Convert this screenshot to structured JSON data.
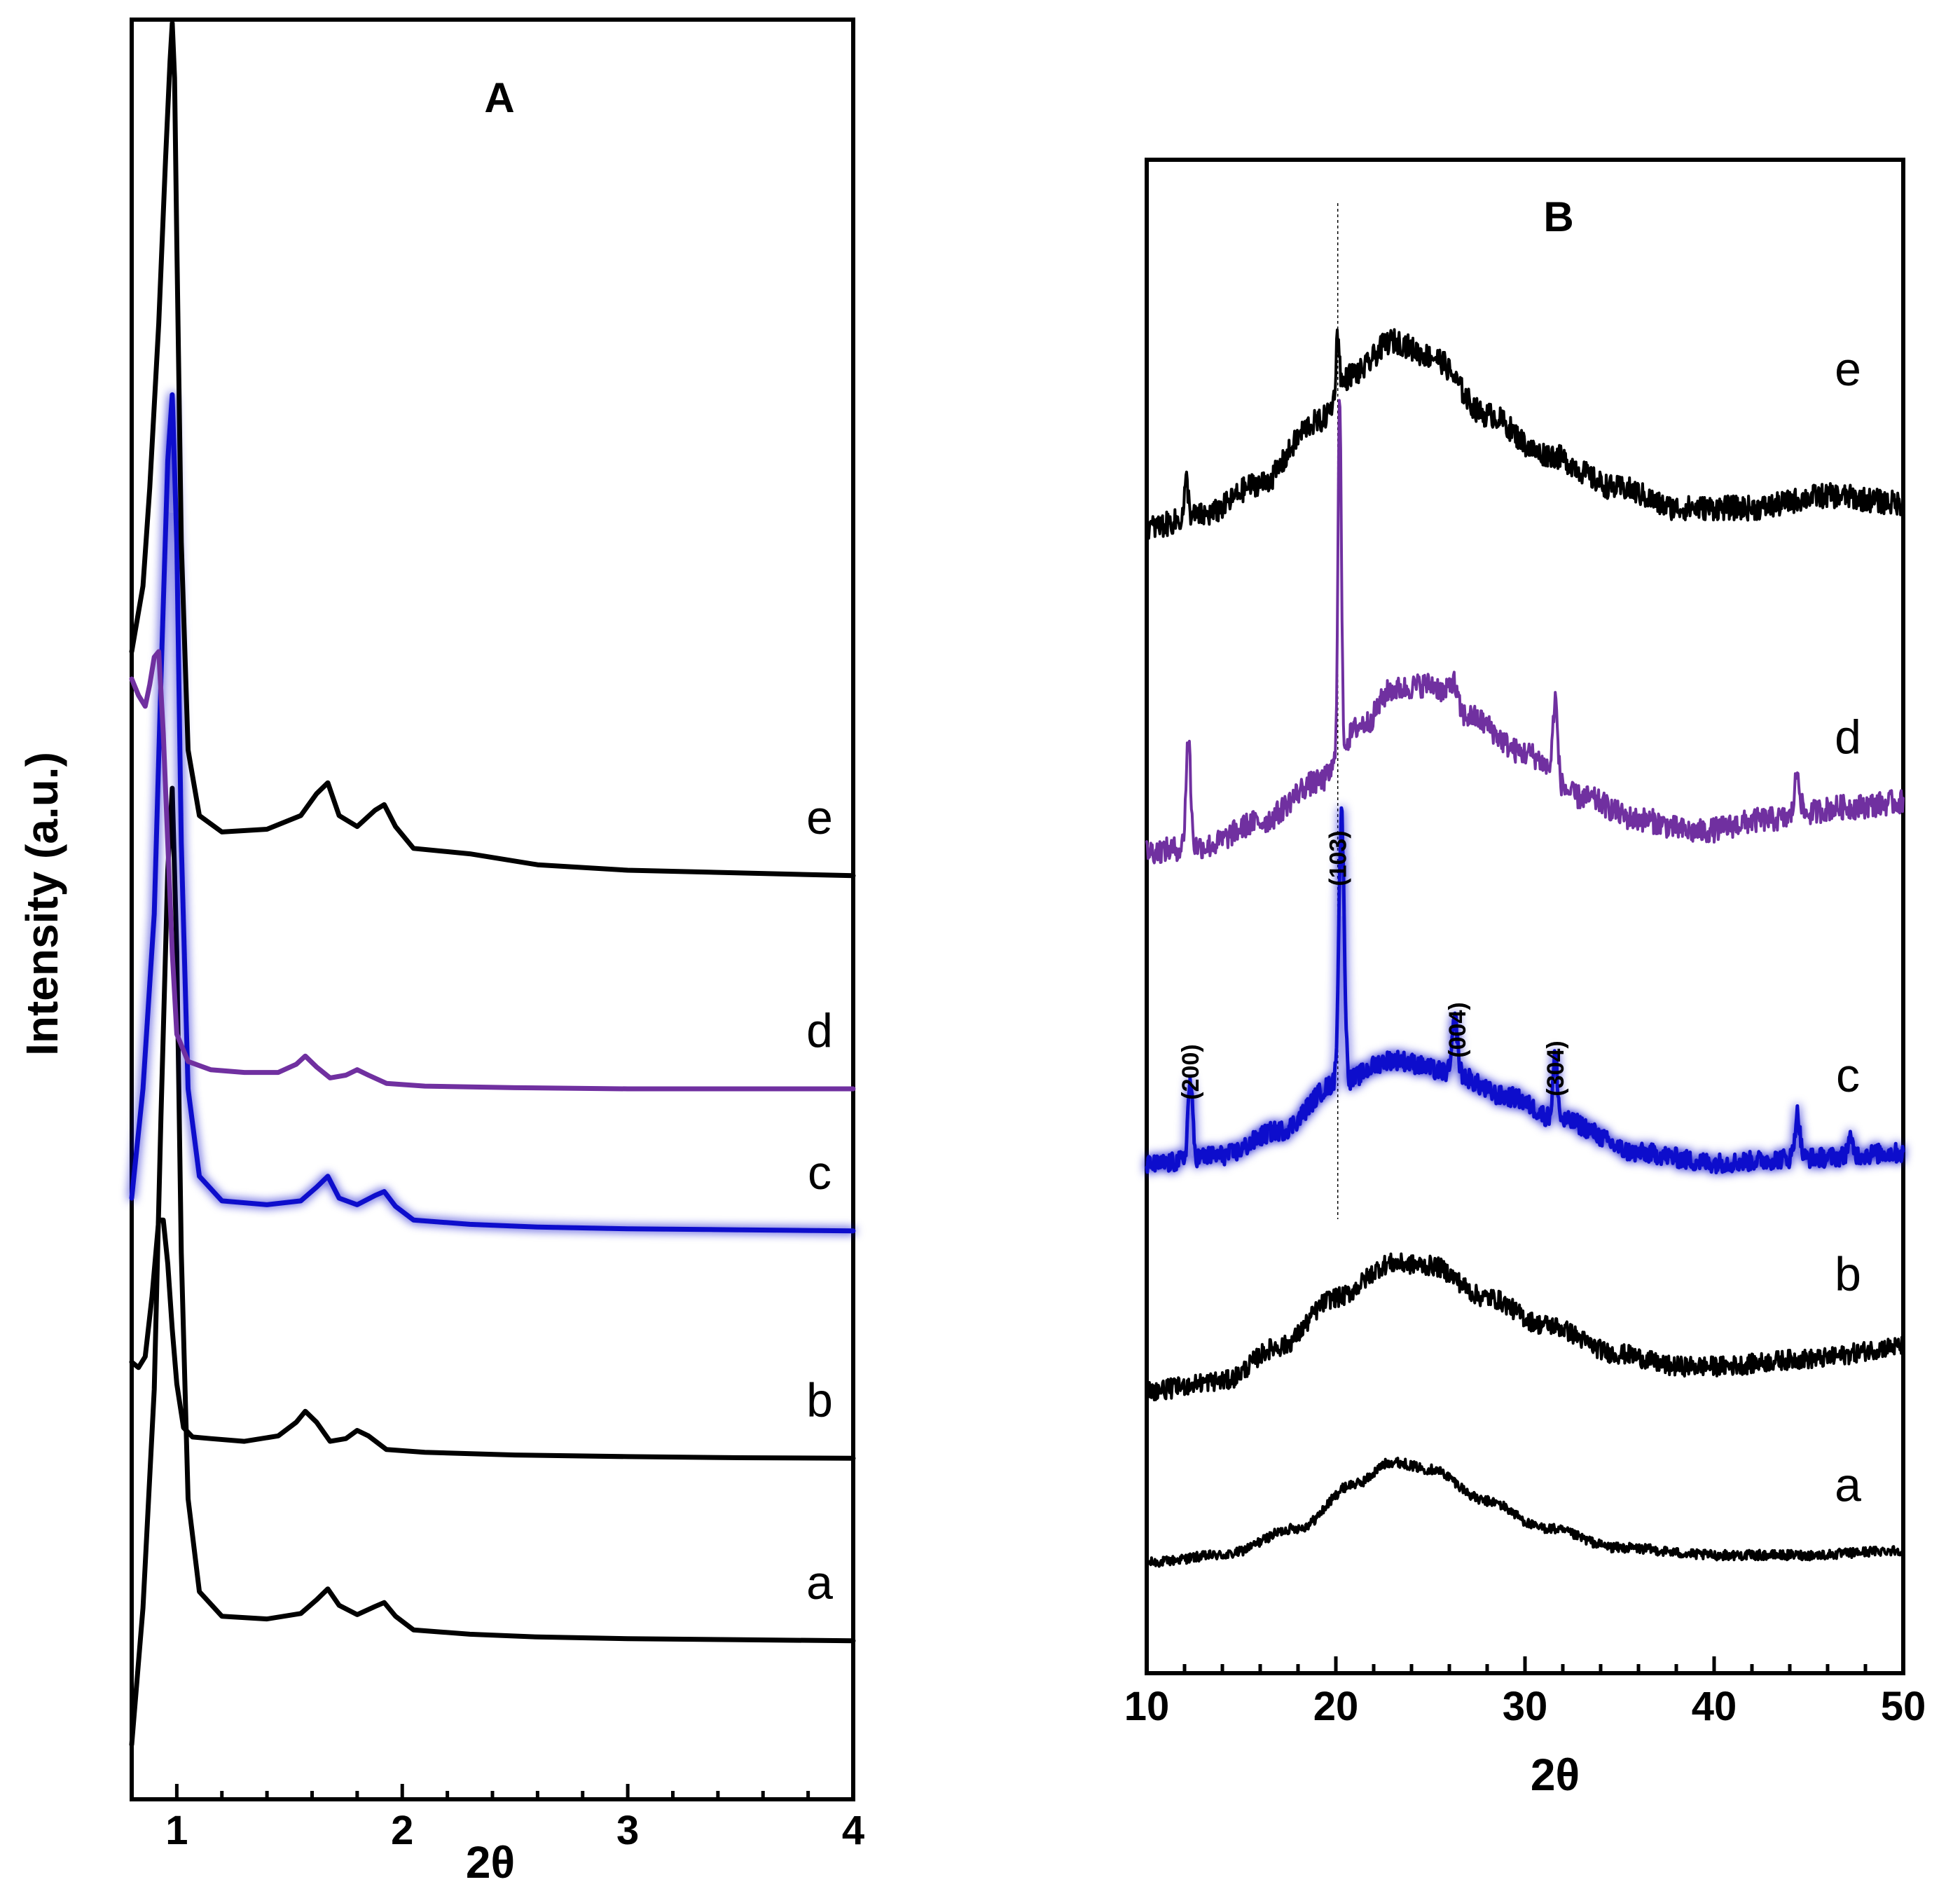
{
  "chart_data": [
    {
      "panel": "A",
      "type": "line",
      "title": "A",
      "xlabel": "2θ",
      "ylabel": "Intensity (a.u.)",
      "xlim": [
        0.8,
        4.0
      ],
      "xticks": [
        1,
        2,
        3,
        4
      ],
      "xtick_labels": [
        "1",
        "2",
        "3",
        "4"
      ],
      "yticks": [],
      "series": [
        {
          "name": "a",
          "color": "#000000",
          "x": [
            0.8,
            0.85,
            0.9,
            0.93,
            0.96,
            0.98,
            1.0,
            1.02,
            1.05,
            1.1,
            1.2,
            1.4,
            1.55,
            1.62,
            1.67,
            1.72,
            1.8,
            1.88,
            1.92,
            1.97,
            2.05,
            2.3,
            2.6,
            3.0,
            3.5,
            4.0
          ],
          "y": [
            0.1,
            0.35,
            0.75,
            1.25,
            1.7,
            1.85,
            1.55,
            1.0,
            0.55,
            0.38,
            0.335,
            0.33,
            0.34,
            0.365,
            0.385,
            0.355,
            0.338,
            0.353,
            0.36,
            0.335,
            0.31,
            0.302,
            0.297,
            0.294,
            0.292,
            0.29
          ]
        },
        {
          "name": "b",
          "color": "#000000",
          "x": [
            0.8,
            0.83,
            0.86,
            0.89,
            0.92,
            0.94,
            0.96,
            0.98,
            1.0,
            1.03,
            1.07,
            1.15,
            1.3,
            1.45,
            1.53,
            1.57,
            1.62,
            1.68,
            1.75,
            1.8,
            1.85,
            1.93,
            2.1,
            2.5,
            3.0,
            3.5,
            4.0
          ],
          "y": [
            0.8,
            0.79,
            0.81,
            0.92,
            1.06,
            1.06,
            0.98,
            0.86,
            0.76,
            0.68,
            0.663,
            0.66,
            0.655,
            0.665,
            0.69,
            0.71,
            0.69,
            0.655,
            0.66,
            0.675,
            0.665,
            0.64,
            0.635,
            0.63,
            0.627,
            0.625,
            0.624
          ]
        },
        {
          "name": "c",
          "color": "#1010cc",
          "glow": true,
          "x": [
            0.8,
            0.85,
            0.9,
            0.93,
            0.96,
            0.98,
            1.0,
            1.02,
            1.05,
            1.1,
            1.2,
            1.4,
            1.55,
            1.62,
            1.67,
            1.72,
            1.8,
            1.88,
            1.92,
            1.97,
            2.05,
            2.3,
            2.6,
            3.0,
            3.5,
            4.0
          ],
          "y": [
            1.1,
            1.3,
            1.62,
            2.05,
            2.45,
            2.57,
            2.3,
            1.75,
            1.3,
            1.14,
            1.095,
            1.088,
            1.095,
            1.12,
            1.14,
            1.1,
            1.088,
            1.105,
            1.112,
            1.085,
            1.06,
            1.052,
            1.047,
            1.044,
            1.042,
            1.04
          ]
        },
        {
          "name": "d",
          "color": "#7030a0",
          "x": [
            0.8,
            0.83,
            0.86,
            0.88,
            0.9,
            0.92,
            0.94,
            0.96,
            0.98,
            1.0,
            1.05,
            1.15,
            1.3,
            1.45,
            1.53,
            1.57,
            1.62,
            1.68,
            1.75,
            1.8,
            1.85,
            1.93,
            2.1,
            2.5,
            3.0,
            3.5,
            4.0
          ],
          "y": [
            2.05,
            2.02,
            2.0,
            2.04,
            2.09,
            2.1,
            1.95,
            1.75,
            1.55,
            1.4,
            1.35,
            1.335,
            1.33,
            1.33,
            1.345,
            1.36,
            1.34,
            1.32,
            1.325,
            1.335,
            1.325,
            1.31,
            1.305,
            1.302,
            1.3,
            1.3,
            1.3
          ]
        },
        {
          "name": "e",
          "color": "#000000",
          "x": [
            0.8,
            0.85,
            0.88,
            0.92,
            0.95,
            0.97,
            0.98,
            0.99,
            1.0,
            1.02,
            1.05,
            1.1,
            1.2,
            1.4,
            1.55,
            1.62,
            1.67,
            1.72,
            1.8,
            1.88,
            1.92,
            1.97,
            2.05,
            2.3,
            2.6,
            3.0,
            3.5,
            4.0
          ],
          "y": [
            2.1,
            2.22,
            2.4,
            2.7,
            3.0,
            3.18,
            3.25,
            3.15,
            2.85,
            2.3,
            1.92,
            1.8,
            1.77,
            1.775,
            1.8,
            1.84,
            1.86,
            1.8,
            1.78,
            1.81,
            1.82,
            1.78,
            1.74,
            1.73,
            1.71,
            1.7,
            1.695,
            1.69
          ]
        }
      ],
      "trace_labels": [
        "a",
        "b",
        "c",
        "d",
        "e"
      ]
    },
    {
      "panel": "B",
      "type": "line",
      "title": "B",
      "xlabel": "2θ",
      "ylabel": "",
      "xlim": [
        10,
        50
      ],
      "xticks": [
        10,
        20,
        30,
        40,
        50
      ],
      "xtick_labels": [
        "10",
        "20",
        "30",
        "40",
        "50"
      ],
      "yticks": [],
      "reference_line_x": 20.1,
      "peak_labels": [
        {
          "text": "(200)",
          "x": 12.3
        },
        {
          "text": "(103)",
          "x": 20.1
        },
        {
          "text": "(004)",
          "x": 26.4
        },
        {
          "text": "(304)",
          "x": 31.6
        }
      ],
      "series": [
        {
          "name": "a",
          "color": "#000000",
          "baseline": [
            [
              10,
              0.0
            ],
            [
              14,
              0.03
            ],
            [
              18,
              0.14
            ],
            [
              21,
              0.32
            ],
            [
              23,
              0.41
            ],
            [
              25,
              0.38
            ],
            [
              28,
              0.25
            ],
            [
              31,
              0.14
            ],
            [
              35,
              0.06
            ],
            [
              40,
              0.03
            ],
            [
              45,
              0.03
            ],
            [
              50,
              0.05
            ]
          ],
          "peaks": [],
          "noise": 0.02
        },
        {
          "name": "b",
          "color": "#000000",
          "baseline": [
            [
              10,
              0.7
            ],
            [
              14,
              0.74
            ],
            [
              17,
              0.88
            ],
            [
              20,
              1.08
            ],
            [
              23,
              1.22
            ],
            [
              25,
              1.21
            ],
            [
              28,
              1.08
            ],
            [
              31,
              0.97
            ],
            [
              35,
              0.85
            ],
            [
              38,
              0.8
            ],
            [
              40,
              0.8
            ],
            [
              45,
              0.83
            ],
            [
              50,
              0.88
            ]
          ],
          "peaks": [],
          "noise": 0.04
        },
        {
          "name": "c",
          "color": "#1010cc",
          "glow": true,
          "baseline": [
            [
              10,
              1.62
            ],
            [
              14,
              1.66
            ],
            [
              17,
              1.76
            ],
            [
              20,
              1.95
            ],
            [
              23,
              2.05
            ],
            [
              26,
              2.0
            ],
            [
              29,
              1.9
            ],
            [
              32,
              1.8
            ],
            [
              36,
              1.67
            ],
            [
              40,
              1.63
            ],
            [
              45,
              1.65
            ],
            [
              50,
              1.67
            ]
          ],
          "peaks": [
            [
              12.3,
              0.32,
              0.12
            ],
            [
              20.3,
              1.1,
              0.14
            ],
            [
              26.3,
              0.22,
              0.13
            ],
            [
              31.6,
              0.26,
              0.12
            ],
            [
              44.4,
              0.18,
              0.13
            ],
            [
              47.2,
              0.06,
              0.15
            ]
          ],
          "noise": 0.04
        },
        {
          "name": "d",
          "color": "#7030a0",
          "baseline": [
            [
              10,
              2.9
            ],
            [
              13,
              2.92
            ],
            [
              16,
              3.02
            ],
            [
              19,
              3.18
            ],
            [
              21.5,
              3.42
            ],
            [
              23,
              3.56
            ],
            [
              25,
              3.58
            ],
            [
              27,
              3.45
            ],
            [
              30,
              3.3
            ],
            [
              33,
              3.12
            ],
            [
              36,
              3.03
            ],
            [
              39,
              2.98
            ],
            [
              43,
              3.03
            ],
            [
              47,
              3.08
            ],
            [
              50,
              3.1
            ]
          ],
          "peaks": [
            [
              12.2,
              0.45,
              0.12
            ],
            [
              20.2,
              1.45,
              0.09
            ],
            [
              26.2,
              0.1,
              0.2
            ],
            [
              31.6,
              0.32,
              0.12
            ],
            [
              44.4,
              0.18,
              0.14
            ]
          ],
          "noise": 0.05
        },
        {
          "name": "e",
          "color": "#000000",
          "baseline": [
            [
              10,
              4.22
            ],
            [
              13,
              4.27
            ],
            [
              16,
              4.4
            ],
            [
              19,
              4.65
            ],
            [
              21,
              4.85
            ],
            [
              23,
              4.98
            ],
            [
              25,
              4.92
            ],
            [
              28,
              4.68
            ],
            [
              31,
              4.52
            ],
            [
              35,
              4.38
            ],
            [
              38,
              4.3
            ],
            [
              42,
              4.3
            ],
            [
              46,
              4.35
            ],
            [
              50,
              4.32
            ]
          ],
          "peaks": [
            [
              12.1,
              0.15,
              0.1
            ],
            [
              20.1,
              0.25,
              0.09
            ]
          ],
          "noise": 0.05
        }
      ],
      "trace_labels": [
        "a",
        "b",
        "c",
        "d",
        "e"
      ]
    }
  ]
}
